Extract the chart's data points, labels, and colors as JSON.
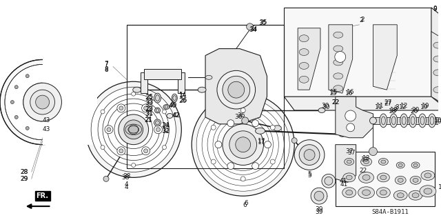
{
  "background_color": "#ffffff",
  "diagram_code": "S84A-B1911",
  "line_color": "#1a1a1a",
  "label_color": "#111111",
  "label_fs": 6.5,
  "figw": 6.4,
  "figh": 3.19,
  "dpi": 100
}
